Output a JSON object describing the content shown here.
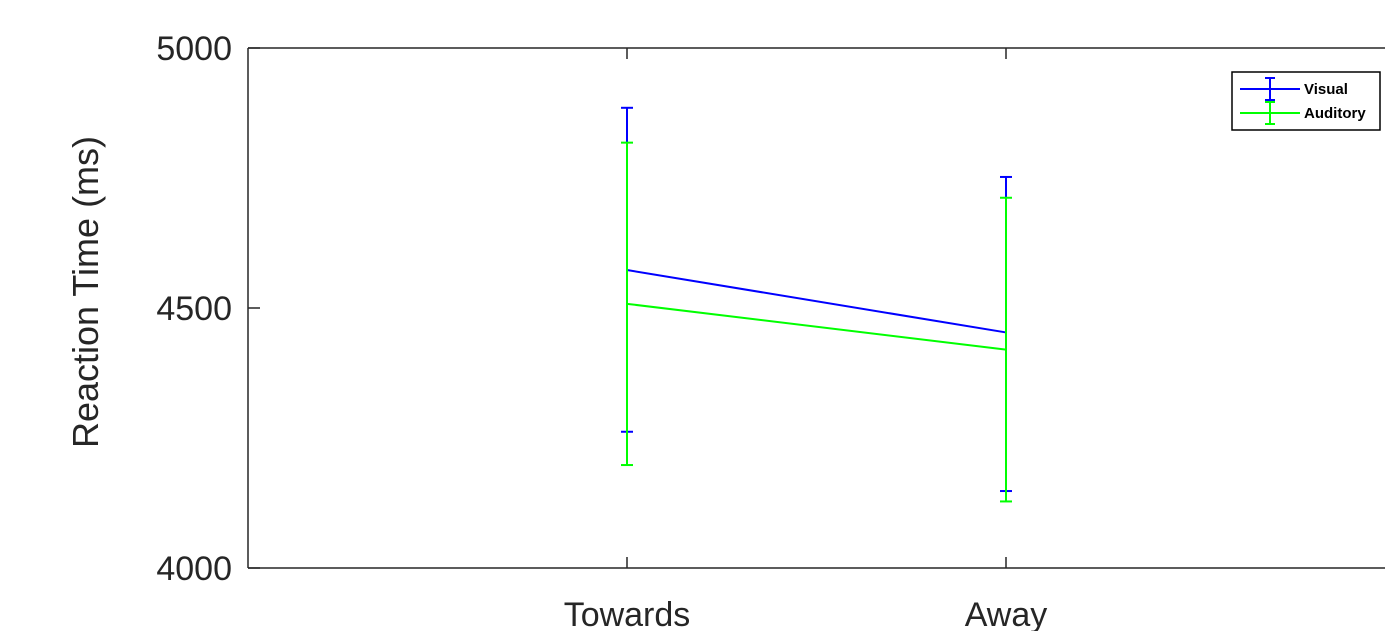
{
  "chart_data": {
    "type": "line",
    "title": "",
    "xlabel": "",
    "ylabel": "Reaction Time (ms)",
    "categories": [
      "Towards",
      "Away"
    ],
    "ylim": [
      4000,
      5000
    ],
    "yticks": [
      "4000",
      "4500",
      "5000"
    ],
    "grid": false,
    "legend_position": "top-right",
    "error_bars": true,
    "series": [
      {
        "name": "Visual",
        "color": "#0000ff",
        "values": [
          4573,
          4453
        ],
        "error_low": [
          4262,
          4148
        ],
        "error_high": [
          4885,
          4752
        ]
      },
      {
        "name": "Auditory",
        "color": "#00ff00",
        "values": [
          4508,
          4420
        ],
        "error_low": [
          4198,
          4128
        ],
        "error_high": [
          4818,
          4712
        ]
      }
    ]
  }
}
